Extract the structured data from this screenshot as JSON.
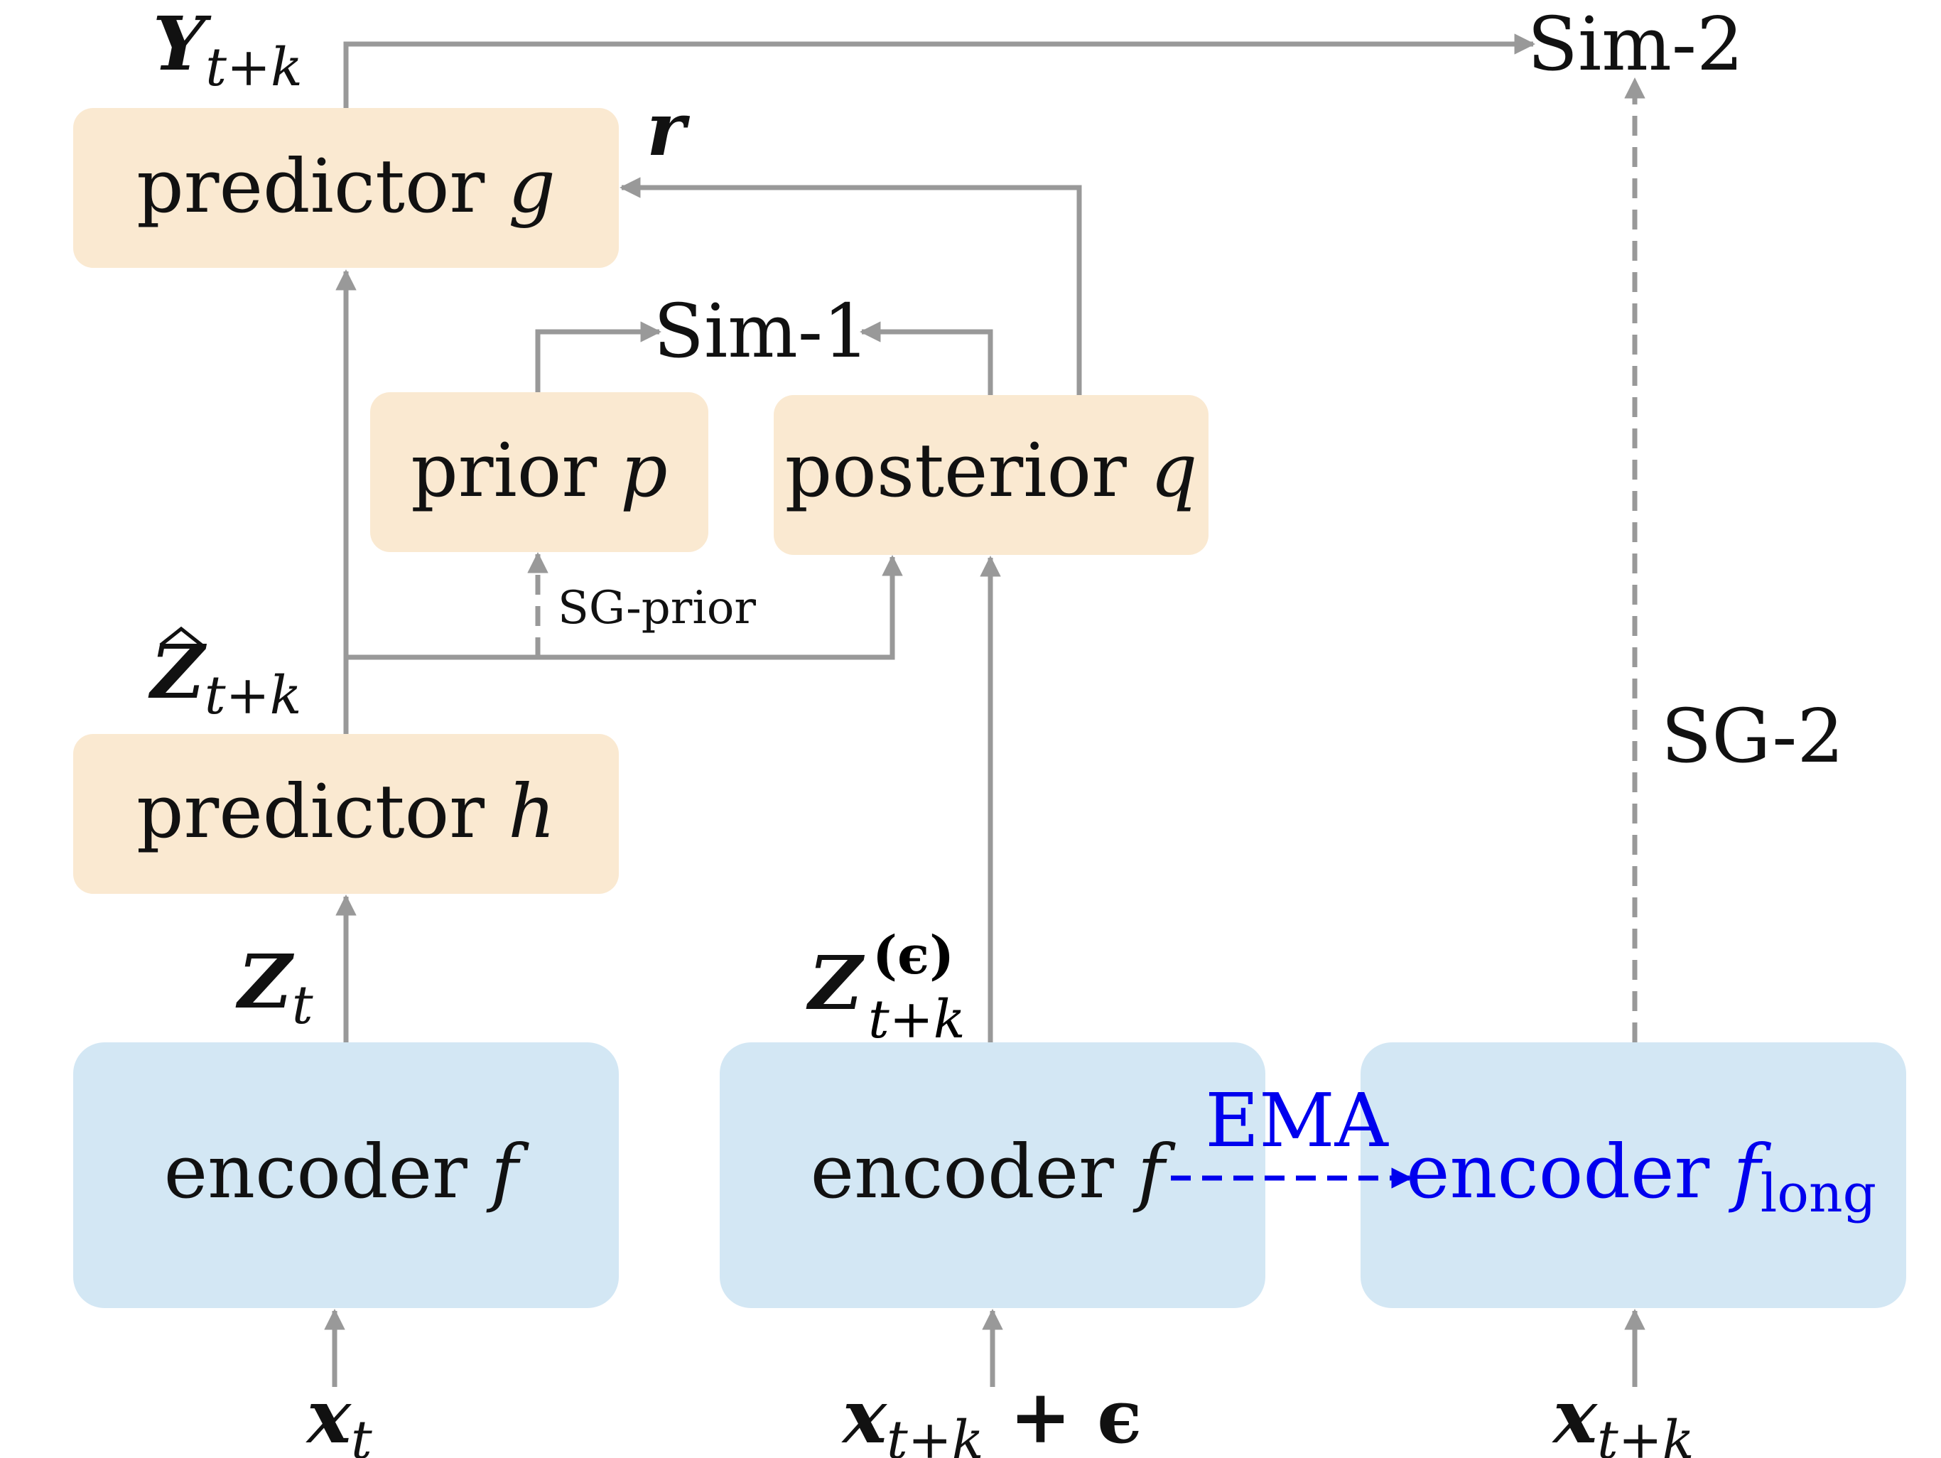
{
  "boxes": {
    "predictor_g": {
      "label": "predictor ",
      "var": "g"
    },
    "predictor_h": {
      "label": "predictor ",
      "var": "h"
    },
    "prior": {
      "label": "prior ",
      "var": "p"
    },
    "posterior": {
      "label": "posterior ",
      "var": "q"
    },
    "encoder_1": {
      "label": "encoder ",
      "var": "f"
    },
    "encoder_2": {
      "label": "encoder ",
      "var": "f"
    },
    "encoder_3": {
      "label": "encoder ",
      "var": "f",
      "sub": "long"
    }
  },
  "labels": {
    "sim1": "Sim-1",
    "sim2": "Sim-2",
    "sg_prior": "SG-prior",
    "sg2": "SG-2",
    "ema": "EMA"
  },
  "math": {
    "y_main": "Y",
    "y_sub": "t+k",
    "r": "r",
    "zhat_main": "Z",
    "zhat_sub": "t+k",
    "zt_main": "Z",
    "zt_sub": "t",
    "zeps_main": "Z",
    "zeps_sup": "(ϵ)",
    "zeps_sub": "t+k",
    "x1_main": "x",
    "x1_sub": "t",
    "x2_main": "x",
    "x2_sub": "t+k",
    "x2_tail": " + ϵ",
    "x3_main": "x",
    "x3_sub": "t+k"
  },
  "colors": {
    "predictor_box": "#fae9d1",
    "encoder_box": "#d3e7f4",
    "arrow": "#999999",
    "ema": "#0000ee"
  }
}
